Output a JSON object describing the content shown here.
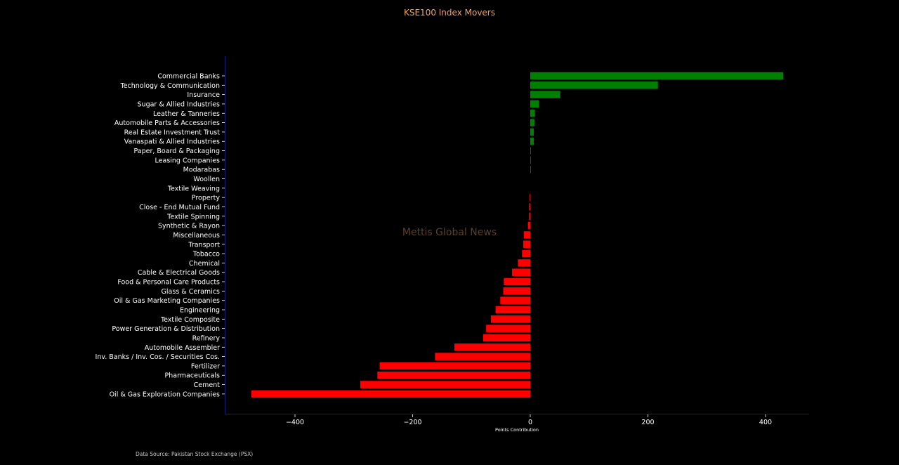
{
  "chart_data": {
    "type": "bar",
    "orientation": "horizontal",
    "title": "KSE100 Index Movers",
    "xlabel": "Points Contribution",
    "ylabel": "",
    "xlim": [
      -525,
      470
    ],
    "xticks": [
      -400,
      -200,
      0,
      200,
      400
    ],
    "xtick_labels": [
      "−400",
      "−200",
      "0",
      "200",
      "400"
    ],
    "grid": false,
    "colors": {
      "positive": "#008000",
      "negative": "#ff0000",
      "axis": "#1a1a80",
      "background": "#000000"
    },
    "categories": [
      "Commercial Banks",
      "Technology & Communication",
      "Insurance",
      "Sugar & Allied Industries",
      "Leather & Tanneries",
      "Automobile Parts & Accessories",
      "Real Estate Investment Trust",
      "Vanaspati & Allied Industries",
      "Paper, Board & Packaging",
      "Leasing Companies",
      "Modarabas",
      "Woollen",
      "Textile Weaving",
      "Property",
      "Close - End Mutual Fund",
      "Textile Spinning",
      "Synthetic & Rayon",
      "Miscellaneous",
      "Transport",
      "Tobacco",
      "Chemical",
      "Cable & Electrical Goods",
      "Food & Personal Care Products",
      "Glass & Ceramics",
      "Oil & Gas Marketing Companies",
      "Engineering",
      "Textile Composite",
      "Power Generation & Distribution",
      "Refinery",
      "Automobile Assembler",
      "Inv. Banks / Inv. Cos. / Securities Cos.",
      "Fertilizer",
      "Pharmaceuticals",
      "Cement",
      "Oil & Gas Exploration Companies"
    ],
    "values": [
      430,
      217,
      51,
      15,
      8,
      7,
      6,
      6,
      1,
      1,
      1,
      0,
      0,
      -1,
      -2,
      -2,
      -4,
      -11,
      -12,
      -14,
      -21,
      -31,
      -45,
      -46,
      -51,
      -59,
      -67,
      -75,
      -80,
      -129,
      -162,
      -256,
      -260,
      -289,
      -474
    ]
  },
  "watermark": "Mettis Global News",
  "footer": {
    "source": "Data Source: Pakistan Stock Exchange (PSX)"
  }
}
